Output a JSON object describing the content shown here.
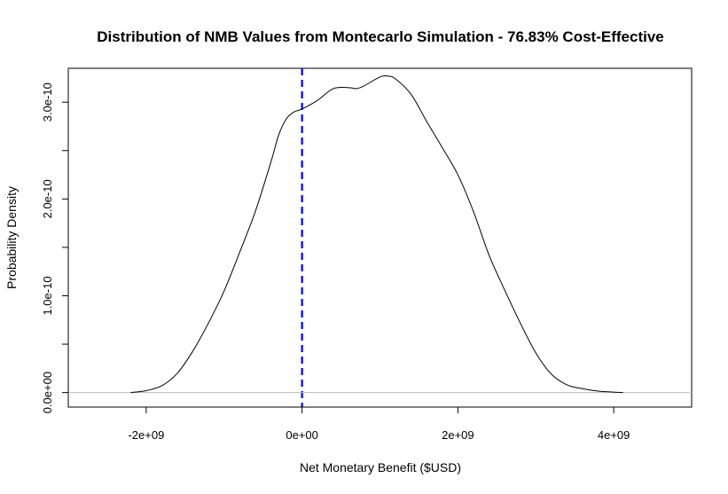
{
  "chart_data": {
    "type": "area",
    "title": "Distribution of NMB Values from Montecarlo Simulation - 76.83% Cost-Effective",
    "xlabel": "Net Monetary Benefit ($USD)",
    "ylabel": "Probability Density",
    "xlim": [
      -3000000000.0,
      5000000000.0
    ],
    "ylim": [
      -1.5e-11,
      3.35e-10
    ],
    "x_ticks": [
      {
        "value": -2000000000.0,
        "label": "-2e+09"
      },
      {
        "value": 0,
        "label": "0e+00"
      },
      {
        "value": 2000000000.0,
        "label": "2e+09"
      },
      {
        "value": 4000000000.0,
        "label": "4e+09"
      }
    ],
    "y_ticks": [
      {
        "value": 0,
        "label": "0.0e+00"
      },
      {
        "value": 5e-11,
        "label": ""
      },
      {
        "value": 1e-10,
        "label": "1.0e-10"
      },
      {
        "value": 1.5e-10,
        "label": ""
      },
      {
        "value": 2e-10,
        "label": "2.0e-10"
      },
      {
        "value": 2.5e-10,
        "label": ""
      },
      {
        "value": 3e-10,
        "label": "3.0e-10"
      }
    ],
    "series": [
      {
        "x": [
          -2200000000.0,
          -2000000000.0,
          -1800000000.0,
          -1600000000.0,
          -1400000000.0,
          -1200000000.0,
          -1000000000.0,
          -800000000.0,
          -600000000.0,
          -400000000.0,
          -300000000.0,
          -200000000.0,
          -100000000.0,
          0,
          200000000.0,
          400000000.0,
          600000000.0,
          700000000.0,
          800000000.0,
          1000000000.0,
          1100000000.0,
          1200000000.0,
          1400000000.0,
          1600000000.0,
          1800000000.0,
          2000000000.0,
          2200000000.0,
          2400000000.0,
          2600000000.0,
          2800000000.0,
          3000000000.0,
          3200000000.0,
          3400000000.0,
          3600000000.0,
          3800000000.0,
          4000000000.0,
          4120000000.0
        ],
        "y": [
          0.0,
          2e-12,
          7e-12,
          2e-11,
          4.3e-11,
          7.2e-11,
          1.05e-10,
          1.45e-10,
          1.87e-10,
          2.38e-10,
          2.66e-10,
          2.83e-10,
          2.9e-10,
          2.93e-10,
          3.02e-10,
          3.14e-10,
          3.15e-10,
          3.14e-10,
          3.17e-10,
          3.26e-10,
          3.27e-10,
          3.24e-10,
          3.08e-10,
          2.8e-10,
          2.53e-10,
          2.25e-10,
          1.87e-10,
          1.42e-10,
          1.06e-10,
          7.2e-11,
          4.1e-11,
          1.9e-11,
          8e-12,
          4e-12,
          1.5e-12,
          5e-13,
          0.0
        ]
      }
    ],
    "reference_lines": [
      {
        "orientation": "vertical",
        "value": 0,
        "color": "#0000ff",
        "style": "dashed"
      },
      {
        "orientation": "horizontal",
        "value": 0,
        "color": "#bebebe",
        "style": "solid"
      }
    ],
    "curve_color": "#000000",
    "grid": false,
    "legend": "none"
  }
}
